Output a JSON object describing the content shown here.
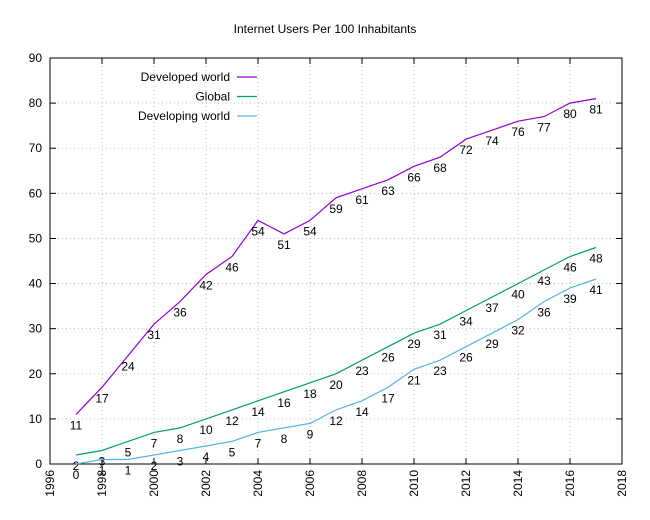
{
  "chart_data": {
    "type": "line",
    "title": "Internet Users Per 100 Inhabitants",
    "xlabel": "",
    "ylabel": "",
    "xlim": [
      1996,
      2018
    ],
    "ylim": [
      0,
      90
    ],
    "xticks": [
      1996,
      1998,
      2000,
      2002,
      2004,
      2006,
      2008,
      2010,
      2012,
      2014,
      2016,
      2018
    ],
    "yticks": [
      0,
      10,
      20,
      30,
      40,
      50,
      60,
      70,
      80,
      90
    ],
    "grid": true,
    "legend_position": "top-left",
    "x": [
      1997,
      1998,
      1999,
      2000,
      2001,
      2002,
      2003,
      2004,
      2005,
      2006,
      2007,
      2008,
      2009,
      2010,
      2011,
      2012,
      2013,
      2014,
      2015,
      2016,
      2017
    ],
    "series": [
      {
        "name": "Developed world",
        "color": "#9400d3",
        "values": [
          11,
          17,
          24,
          31,
          36,
          42,
          46,
          54,
          51,
          54,
          59,
          61,
          63,
          66,
          68,
          72,
          74,
          76,
          77,
          80,
          81
        ],
        "labels": [
          "11",
          "17",
          "24",
          "31",
          "36",
          "42",
          "46",
          "54",
          "51",
          "54",
          "59",
          "61",
          "63",
          "66",
          "68",
          "72",
          "74",
          "76",
          "77",
          "80",
          "81"
        ]
      },
      {
        "name": "Global",
        "color": "#009e73",
        "values": [
          2,
          3,
          5,
          7,
          8,
          10,
          12,
          14,
          16,
          18,
          20,
          23,
          26,
          29,
          31,
          34,
          37,
          40,
          43,
          46,
          48
        ],
        "labels": [
          "2",
          "3",
          "5",
          "7",
          "8",
          "10",
          "12",
          "14",
          "16",
          "18",
          "20",
          "23",
          "26",
          "29",
          "31",
          "34",
          "37",
          "40",
          "43",
          "46",
          "48"
        ]
      },
      {
        "name": "Developing world",
        "color": "#56b4e9",
        "values": [
          0,
          1,
          1,
          2,
          3,
          4,
          5,
          7,
          8,
          9,
          12,
          14,
          17,
          21,
          23,
          26,
          29,
          32,
          36,
          39,
          41
        ],
        "labels": [
          "0",
          "1",
          "1",
          "2",
          "3",
          "4",
          "5",
          "7",
          "8",
          "9",
          "12",
          "14",
          "17",
          "21",
          "23",
          "26",
          "29",
          "32",
          "36",
          "39",
          "41"
        ]
      }
    ]
  }
}
